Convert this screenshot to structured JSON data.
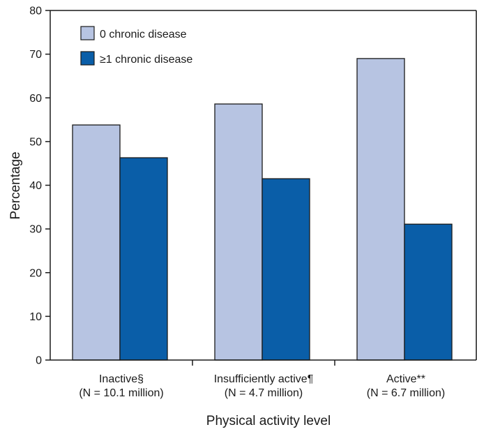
{
  "chart_data": {
    "type": "bar",
    "xlabel": "Physical activity level",
    "ylabel": "Percentage",
    "ylim": [
      0,
      80
    ],
    "yticks": [
      0,
      10,
      20,
      30,
      40,
      50,
      60,
      70,
      80
    ],
    "categories": [
      [
        "Inactive§",
        "(N = 10.1 million)"
      ],
      [
        "Insufficiently active¶",
        "(N = 4.7 million)"
      ],
      [
        "Active**",
        "(N = 6.7 million)"
      ]
    ],
    "series": [
      {
        "name": "0 chronic disease",
        "color": "#b7c4e2",
        "values": [
          53.8,
          58.6,
          69.0
        ]
      },
      {
        "name": "≥1 chronic disease",
        "color": "#0a5ea8",
        "values": [
          46.3,
          41.5,
          31.1
        ]
      }
    ],
    "legend_position": "top-left",
    "grid": false
  }
}
